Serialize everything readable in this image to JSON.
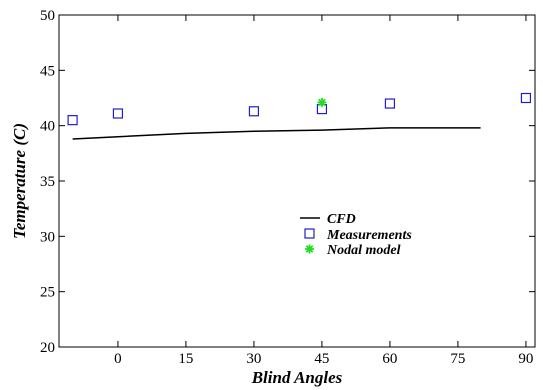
{
  "chart_data": {
    "type": "line",
    "title": "",
    "xlabel": "Blind Angles",
    "ylabel": "Temperature (C)",
    "xlim": [
      -13,
      92
    ],
    "ylim": [
      20,
      50
    ],
    "xticks": [
      0,
      15,
      30,
      45,
      60,
      75,
      90
    ],
    "yticks": [
      20,
      25,
      30,
      35,
      40,
      45,
      50
    ],
    "grid": false,
    "legend_position": "center",
    "series": [
      {
        "name": "CFD",
        "style": "line",
        "color": "#000000",
        "x": [
          -10,
          0,
          15,
          30,
          45,
          60,
          80
        ],
        "y": [
          38.8,
          39.0,
          39.3,
          39.5,
          39.6,
          39.8,
          39.8
        ]
      },
      {
        "name": "Measurements",
        "style": "square",
        "color": "#1f1fc8",
        "x": [
          -10,
          0,
          30,
          45,
          60,
          90
        ],
        "y": [
          40.5,
          41.1,
          41.3,
          41.5,
          42.0,
          42.5
        ]
      },
      {
        "name": "Nodal model",
        "style": "asterisk",
        "color": "#22dd22",
        "x": [
          45
        ],
        "y": [
          42.1
        ]
      }
    ]
  }
}
